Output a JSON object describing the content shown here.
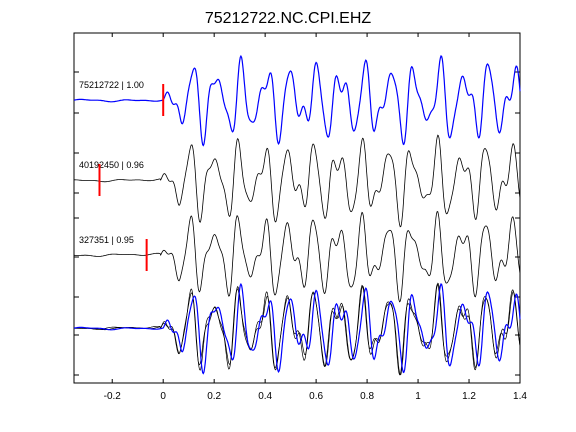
{
  "chart_data": {
    "type": "line",
    "title": "75212722.NC.CPI.EHZ",
    "xlim": [
      -0.35,
      1.4
    ],
    "x_ticks": [
      "-0.2",
      "0",
      "0.2",
      "0.4",
      "0.6",
      "0.8",
      "1",
      "1.2",
      "1.4"
    ],
    "x_tick_values": [
      -0.2,
      0,
      0.2,
      0.4,
      0.6,
      0.8,
      1,
      1.2,
      1.4
    ],
    "grid": false,
    "colors": {
      "reference": "#0000ff",
      "other": "#000000",
      "pick": "#ff0000"
    },
    "series": [
      {
        "name": "75212722 | 1.00",
        "pick_time": 0.0,
        "onset": 0.0,
        "color": "#0000ff"
      },
      {
        "name": "40192450 | 0.96",
        "pick_time": -0.25,
        "onset": -0.01,
        "color": "#000000"
      },
      {
        "name": "327351 | 0.95",
        "pick_time": -0.065,
        "onset": -0.01,
        "color": "#000000"
      }
    ],
    "stacked_panel": {
      "series": [
        "75212722",
        "40192450",
        "327351"
      ],
      "pick_marks": false
    }
  }
}
